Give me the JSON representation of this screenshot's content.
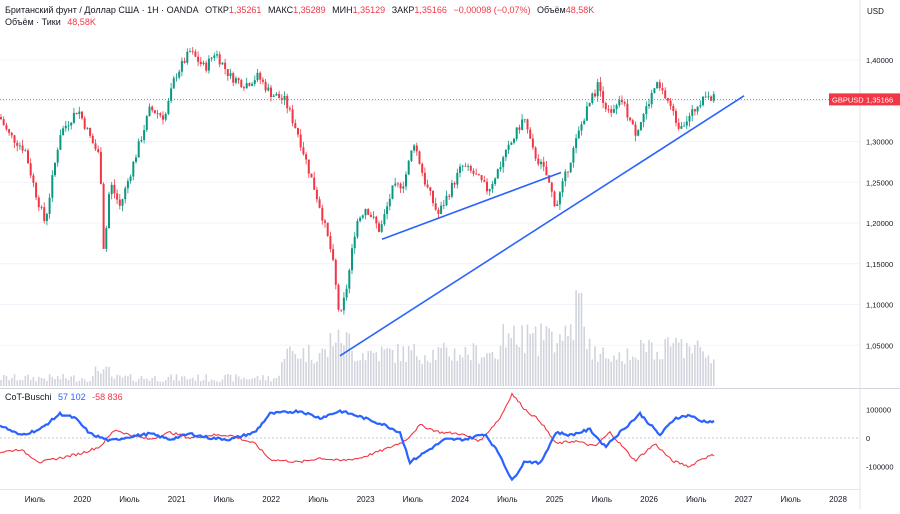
{
  "header": {
    "symbol_line": "Британский фунт / Доллар США · 1Н · OANDA",
    "open_label": "ОТКР",
    "open": "1,35261",
    "high_label": "МАКС",
    "high": "1,35289",
    "low_label": "МИН",
    "low": "1,35129",
    "close_label": "ЗАКР",
    "close": "1,35166",
    "change": "−0,00098 (−0,07%)",
    "volume_label": "Объём",
    "volume": "48,58K",
    "volume_line_label": "Объём · Тики",
    "volume_line_value": "48,58K"
  },
  "axis": {
    "currency": "USD",
    "price_ticks": [
      "1,40000",
      "1,35000",
      "1,30000",
      "1,25000",
      "1,20000",
      "1,15000",
      "1,10000",
      "1,05000"
    ],
    "price_tick_values": [
      1.4,
      1.35,
      1.3,
      1.25,
      1.2,
      1.15,
      1.1,
      1.05
    ],
    "price_tag_symbol": "GBPUSD",
    "price_tag_value": "1,35166",
    "current_price": 1.35166
  },
  "indicator": {
    "name": "CoT-Buschi",
    "value_blue": "57 102",
    "value_red": "-58 836",
    "ticks": [
      "100000",
      "0",
      "-100000"
    ],
    "tick_values": [
      100000,
      0,
      -100000
    ]
  },
  "time_axis": {
    "labels": [
      "Июль",
      "2020",
      "Июль",
      "2021",
      "Июль",
      "2022",
      "Июль",
      "2023",
      "Июль",
      "2024",
      "Июль",
      "2025",
      "Июль",
      "2026",
      "Июль",
      "2027",
      "Июль",
      "2028"
    ]
  },
  "colors": {
    "up": "#089981",
    "down": "#f23645",
    "trend": "#2962ff",
    "cot_blue": "#2962ff",
    "cot_red": "#f23645",
    "volume": "#d1d4dc",
    "tag_bg": "#f23645"
  },
  "chart_data": {
    "type": "candlestick",
    "symbol": "GBPUSD",
    "price_anchors": [
      [
        0,
        1.33
      ],
      [
        8,
        1.31
      ],
      [
        25,
        1.29
      ],
      [
        35,
        1.24
      ],
      [
        45,
        1.2
      ],
      [
        60,
        1.31
      ],
      [
        78,
        1.34
      ],
      [
        92,
        1.3
      ],
      [
        100,
        1.28
      ],
      [
        104,
        1.16
      ],
      [
        110,
        1.25
      ],
      [
        120,
        1.22
      ],
      [
        135,
        1.28
      ],
      [
        150,
        1.34
      ],
      [
        165,
        1.33
      ],
      [
        175,
        1.38
      ],
      [
        190,
        1.41
      ],
      [
        205,
        1.39
      ],
      [
        215,
        1.41
      ],
      [
        230,
        1.38
      ],
      [
        245,
        1.37
      ],
      [
        258,
        1.38
      ],
      [
        270,
        1.36
      ],
      [
        285,
        1.35
      ],
      [
        298,
        1.31
      ],
      [
        310,
        1.26
      ],
      [
        320,
        1.22
      ],
      [
        332,
        1.16
      ],
      [
        340,
        1.08
      ],
      [
        348,
        1.13
      ],
      [
        356,
        1.2
      ],
      [
        366,
        1.22
      ],
      [
        380,
        1.19
      ],
      [
        392,
        1.24
      ],
      [
        404,
        1.25
      ],
      [
        414,
        1.3
      ],
      [
        425,
        1.25
      ],
      [
        438,
        1.21
      ],
      [
        450,
        1.24
      ],
      [
        462,
        1.27
      ],
      [
        474,
        1.26
      ],
      [
        488,
        1.24
      ],
      [
        500,
        1.27
      ],
      [
        512,
        1.3
      ],
      [
        524,
        1.33
      ],
      [
        532,
        1.29
      ],
      [
        546,
        1.26
      ],
      [
        556,
        1.22
      ],
      [
        566,
        1.26
      ],
      [
        576,
        1.3
      ],
      [
        584,
        1.33
      ],
      [
        598,
        1.37
      ],
      [
        610,
        1.33
      ],
      [
        622,
        1.35
      ],
      [
        635,
        1.31
      ],
      [
        646,
        1.34
      ],
      [
        656,
        1.37
      ],
      [
        668,
        1.35
      ],
      [
        678,
        1.32
      ],
      [
        690,
        1.33
      ],
      [
        700,
        1.35
      ],
      [
        708,
        1.36
      ],
      [
        714,
        1.352
      ]
    ],
    "trendlines": [
      {
        "from": [
          340,
          1.037
        ],
        "to": [
          744,
          1.356
        ]
      },
      {
        "from": [
          382,
          1.18
        ],
        "to": [
          561,
          1.262
        ]
      }
    ],
    "cot_blue_anchors": [
      [
        0,
        45000
      ],
      [
        20,
        10000
      ],
      [
        40,
        30000
      ],
      [
        60,
        85000
      ],
      [
        75,
        70000
      ],
      [
        90,
        15000
      ],
      [
        110,
        -10000
      ],
      [
        130,
        5000
      ],
      [
        150,
        15000
      ],
      [
        170,
        -5000
      ],
      [
        190,
        15000
      ],
      [
        210,
        0
      ],
      [
        230,
        -5000
      ],
      [
        255,
        20000
      ],
      [
        270,
        85000
      ],
      [
        300,
        95000
      ],
      [
        320,
        70000
      ],
      [
        340,
        95000
      ],
      [
        360,
        75000
      ],
      [
        385,
        45000
      ],
      [
        400,
        20000
      ],
      [
        410,
        -85000
      ],
      [
        425,
        -50000
      ],
      [
        445,
        -5000
      ],
      [
        465,
        -5000
      ],
      [
        485,
        15000
      ],
      [
        500,
        -60000
      ],
      [
        512,
        -150000
      ],
      [
        525,
        -80000
      ],
      [
        540,
        -90000
      ],
      [
        556,
        20000
      ],
      [
        570,
        10000
      ],
      [
        590,
        30000
      ],
      [
        605,
        -30000
      ],
      [
        620,
        20000
      ],
      [
        640,
        85000
      ],
      [
        660,
        10000
      ],
      [
        675,
        70000
      ],
      [
        690,
        80000
      ],
      [
        700,
        60000
      ],
      [
        714,
        57102
      ]
    ],
    "cot_red_anchors": [
      [
        0,
        -50000
      ],
      [
        20,
        -40000
      ],
      [
        40,
        -85000
      ],
      [
        60,
        -70000
      ],
      [
        80,
        -55000
      ],
      [
        100,
        -30000
      ],
      [
        115,
        30000
      ],
      [
        130,
        10000
      ],
      [
        150,
        -5000
      ],
      [
        170,
        20000
      ],
      [
        190,
        0
      ],
      [
        210,
        10000
      ],
      [
        230,
        10000
      ],
      [
        255,
        -20000
      ],
      [
        270,
        -75000
      ],
      [
        300,
        -85000
      ],
      [
        320,
        -70000
      ],
      [
        340,
        -80000
      ],
      [
        360,
        -70000
      ],
      [
        385,
        -40000
      ],
      [
        405,
        -10000
      ],
      [
        420,
        45000
      ],
      [
        440,
        20000
      ],
      [
        460,
        15000
      ],
      [
        480,
        -10000
      ],
      [
        500,
        70000
      ],
      [
        512,
        155000
      ],
      [
        525,
        100000
      ],
      [
        540,
        60000
      ],
      [
        556,
        -20000
      ],
      [
        575,
        -10000
      ],
      [
        595,
        -30000
      ],
      [
        610,
        20000
      ],
      [
        635,
        -80000
      ],
      [
        655,
        -20000
      ],
      [
        672,
        -80000
      ],
      [
        690,
        -100000
      ],
      [
        700,
        -75000
      ],
      [
        714,
        -58836
      ]
    ]
  }
}
